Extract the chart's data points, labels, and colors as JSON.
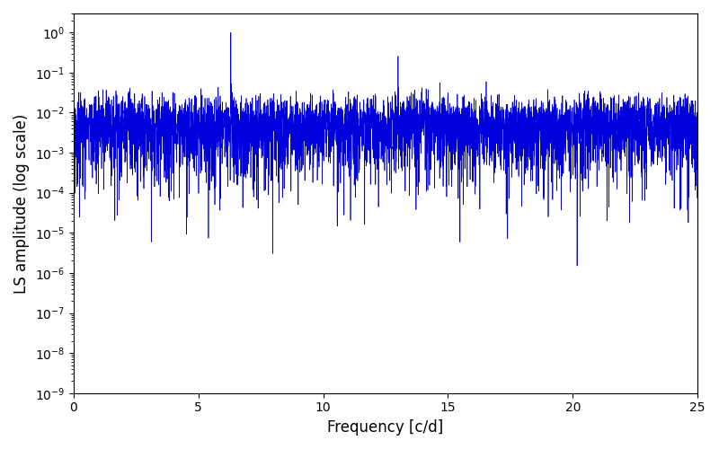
{
  "xlabel": "Frequency [c/d]",
  "ylabel": "LS amplitude (log scale)",
  "xlim": [
    0,
    25
  ],
  "ylim": [
    1e-09,
    3
  ],
  "line_color": "#0000DD",
  "line_width": 0.5,
  "background_color": "#ffffff",
  "figsize": [
    8.0,
    5.0
  ],
  "dpi": 100,
  "seed": 42,
  "freq_step": 0.005,
  "peak1_freq": 6.3,
  "peak1_amp": 1.0,
  "peak2_freq": 13.0,
  "peak2_amp": 0.15,
  "peak3_freq": 19.0,
  "peak3_amp": 0.012,
  "obs_baseline_days": 200
}
